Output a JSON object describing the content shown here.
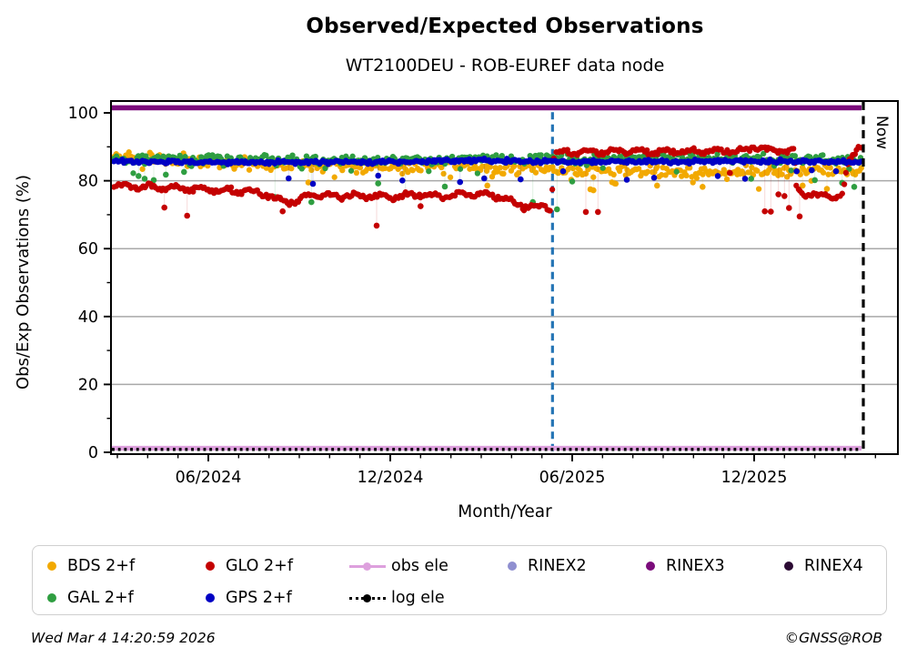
{
  "header": {
    "title": "Observed/Expected Observations",
    "subtitle": "WT2100DEU - ROB-EUREF data node"
  },
  "footer": {
    "left": "Wed Mar  4 14:20:59 2026",
    "right": "©GNSS@ROB"
  },
  "chart_data": {
    "type": "scatter",
    "title": "Observed/Expected Observations",
    "subtitle": "WT2100DEU - ROB-EUREF data node",
    "xlabel": "Month/Year",
    "ylabel": "Obs/Exp Observations (%)",
    "x_axis": {
      "epoch": "2024-03",
      "tick_labels": [
        "06/2024",
        "12/2024",
        "06/2025",
        "12/2025"
      ],
      "tick_months": [
        3,
        9,
        15,
        21
      ],
      "minor_tick_months_range": [
        0,
        25
      ],
      "data_month_range": [
        -0.1,
        24.55
      ]
    },
    "y_axis": {
      "ticks": [
        0,
        20,
        40,
        60,
        80,
        100
      ],
      "minor_ticks": [
        10,
        30,
        50,
        70,
        90
      ],
      "range": [
        -0.55,
        103.5
      ]
    },
    "gridlines_y": [
      20,
      40,
      60,
      80
    ],
    "grid_color": "#a8a8a8",
    "vlines": [
      {
        "name": "event-line",
        "month": 14.35,
        "color": "#2474b5",
        "style": "dashed",
        "label": ""
      },
      {
        "name": "now-line",
        "month": 24.6,
        "color": "#000000",
        "style": "dashed",
        "label": "Now"
      }
    ],
    "now_label": "Now",
    "series": [
      {
        "name": "BDS 2+f",
        "kind": "scatter",
        "color": "#f2a900",
        "seed": 11,
        "jitter": 1.5,
        "neg_tail_prob": 0.05,
        "neg_tail_max": 4.0,
        "trend": [
          [
            -0.1,
            87.1
          ],
          [
            2,
            86.3
          ],
          [
            4,
            85.3
          ],
          [
            6,
            84.7
          ],
          [
            8,
            84.4
          ],
          [
            9.5,
            84.0
          ],
          [
            11,
            84.6
          ],
          [
            12,
            84.2
          ],
          [
            13,
            83.5
          ],
          [
            14,
            83.1
          ],
          [
            15,
            83.2
          ],
          [
            17,
            82.9
          ],
          [
            19,
            82.6
          ],
          [
            20,
            82.4
          ],
          [
            21,
            82.9
          ],
          [
            22,
            82.6
          ],
          [
            23.2,
            83.1
          ],
          [
            24.55,
            83.3
          ]
        ],
        "outliers": [
          [
            6.3,
            79.5
          ],
          [
            12.2,
            78.6
          ],
          [
            15.6,
            77.5
          ],
          [
            15.7,
            77.2
          ],
          [
            16.4,
            79.2
          ],
          [
            17.8,
            78.6
          ],
          [
            19.3,
            78.2
          ],
          [
            22.6,
            78.6
          ],
          [
            23.4,
            77.6
          ]
        ]
      },
      {
        "name": "GAL 2+f",
        "kind": "scatter",
        "color": "#2f9e41",
        "seed": 22,
        "jitter": 1.15,
        "neg_tail_prob": 0.06,
        "neg_tail_max": 4.5,
        "trend": [
          [
            -0.1,
            86.8
          ],
          [
            3,
            86.5
          ],
          [
            6,
            86.2
          ],
          [
            9,
            86.0
          ],
          [
            12,
            86.3
          ],
          [
            15,
            86.5
          ],
          [
            18,
            86.8
          ],
          [
            21,
            86.6
          ],
          [
            24.55,
            86.2
          ]
        ],
        "outliers": [
          [
            0.7,
            81.4
          ],
          [
            0.9,
            80.6
          ],
          [
            1.2,
            80.2
          ],
          [
            1.6,
            81.8
          ],
          [
            2.2,
            82.6
          ],
          [
            5.2,
            75.2
          ],
          [
            6.4,
            73.7
          ],
          [
            8.6,
            79.2
          ],
          [
            9.5,
            76.4
          ],
          [
            10.8,
            78.3
          ],
          [
            13.7,
            73.7
          ],
          [
            14.5,
            71.6
          ],
          [
            15.0,
            79.8
          ],
          [
            20.9,
            80.6
          ],
          [
            23.0,
            80.2
          ],
          [
            23.9,
            79.4
          ],
          [
            24.3,
            78.2
          ]
        ]
      },
      {
        "name": "GLO 2+f",
        "kind": "scatter",
        "color": "#c40000",
        "seed": 33,
        "jitter": 0.55,
        "wiggle": {
          "amp": 0.85,
          "period": 0.85
        },
        "trend": [
          [
            -0.1,
            78.4
          ],
          [
            1.5,
            77.9
          ],
          [
            3,
            77.4
          ],
          [
            4.5,
            76.7
          ],
          [
            5.0,
            75.9
          ],
          [
            5.2,
            74.3
          ],
          [
            6.0,
            73.9
          ],
          [
            6.35,
            75.7
          ],
          [
            8,
            75.5
          ],
          [
            9,
            75.3
          ],
          [
            10,
            76.1
          ],
          [
            10.6,
            75.3
          ],
          [
            11.6,
            76.3
          ],
          [
            12.6,
            75.7
          ],
          [
            13.1,
            73.1
          ],
          [
            13.6,
            72.4
          ],
          [
            14.3,
            72.2
          ],
          [
            14.42,
            88.3
          ],
          [
            16,
            88.6
          ],
          [
            18,
            88.6
          ],
          [
            19.5,
            88.9
          ],
          [
            20.6,
            88.7
          ],
          [
            21.05,
            90.2
          ],
          [
            21.4,
            88.9
          ],
          [
            22.3,
            88.7
          ],
          [
            22.42,
            76.8
          ],
          [
            23.2,
            75.3
          ],
          [
            23.9,
            75.9
          ],
          [
            24.1,
            85.0
          ],
          [
            24.45,
            90.3
          ],
          [
            24.55,
            91.0
          ]
        ],
        "outliers": [
          [
            1.55,
            72.1
          ],
          [
            2.3,
            69.7
          ],
          [
            5.45,
            71.0
          ],
          [
            8.55,
            66.8
          ],
          [
            10.0,
            72.5
          ],
          [
            15.45,
            70.8
          ],
          [
            15.85,
            70.8
          ],
          [
            20.2,
            82.3
          ],
          [
            21.35,
            71.0
          ],
          [
            21.55,
            70.9
          ],
          [
            21.8,
            76.0
          ],
          [
            22.0,
            75.5
          ],
          [
            22.15,
            72.0
          ],
          [
            22.5,
            69.5
          ]
        ]
      },
      {
        "name": "GPS 2+f",
        "kind": "scatter",
        "color": "#0000c4",
        "seed": 44,
        "jitter": 0.5,
        "trend": [
          [
            -0.1,
            85.7
          ],
          [
            4,
            85.4
          ],
          [
            8,
            85.5
          ],
          [
            11,
            85.9
          ],
          [
            12,
            86.1
          ],
          [
            14,
            85.6
          ],
          [
            18,
            85.6
          ],
          [
            22,
            85.7
          ],
          [
            24.55,
            85.6
          ]
        ],
        "outliers": [
          [
            5.65,
            80.7
          ],
          [
            6.45,
            79.1
          ],
          [
            8.6,
            81.5
          ],
          [
            9.4,
            80.1
          ],
          [
            11.3,
            79.6
          ],
          [
            12.1,
            80.7
          ],
          [
            13.3,
            80.4
          ],
          [
            14.7,
            82.8
          ],
          [
            16.8,
            80.3
          ],
          [
            17.7,
            80.9
          ],
          [
            19.8,
            81.4
          ],
          [
            20.7,
            80.6
          ],
          [
            22.4,
            82.8
          ],
          [
            22.9,
            83.1
          ],
          [
            23.7,
            82.8
          ]
        ]
      },
      {
        "name": "obs ele",
        "kind": "hline",
        "color": "#dda0dd",
        "value": 1.2,
        "width": 5.2,
        "dash": null
      },
      {
        "name": "log ele",
        "kind": "hline",
        "color": "#000000",
        "value": 0.85,
        "width": 3.3,
        "dash": "2.9 3.8"
      },
      {
        "name": "RINEX2",
        "kind": "hline",
        "color": "#8f8fd0",
        "value": 101.5,
        "width": 2.2,
        "dash": null
      },
      {
        "name": "RINEX4",
        "kind": "hline",
        "color": "#2b0a33",
        "value": 101.5,
        "width": 1.6,
        "dash": null
      },
      {
        "name": "RINEX3",
        "kind": "hline",
        "color": "#7b0c7b",
        "value": 101.5,
        "width": 5.6,
        "dash": null
      }
    ],
    "legend": {
      "entries": [
        {
          "label": "BDS 2+f",
          "marker": "dot",
          "color": "#f2a900",
          "col": 0,
          "row": 0
        },
        {
          "label": "GLO 2+f",
          "marker": "dot",
          "color": "#c40000",
          "col": 1,
          "row": 0
        },
        {
          "label": "obs ele",
          "marker": "line-dot",
          "color": "#dda0dd",
          "col": 2,
          "row": 0
        },
        {
          "label": "RINEX2",
          "marker": "dot",
          "color": "#8f8fd0",
          "col": 3,
          "row": 0
        },
        {
          "label": "RINEX3",
          "marker": "dot",
          "color": "#7b0c7b",
          "col": 4,
          "row": 0
        },
        {
          "label": "RINEX4",
          "marker": "dot",
          "color": "#2b0a33",
          "col": 5,
          "row": 0
        },
        {
          "label": "GAL 2+f",
          "marker": "dot",
          "color": "#2f9e41",
          "col": 0,
          "row": 1
        },
        {
          "label": "GPS 2+f",
          "marker": "dot",
          "color": "#0000c4",
          "col": 1,
          "row": 1
        },
        {
          "label": "log ele",
          "marker": "dash-dot",
          "color": "#000000",
          "col": 2,
          "row": 1
        }
      ]
    }
  }
}
